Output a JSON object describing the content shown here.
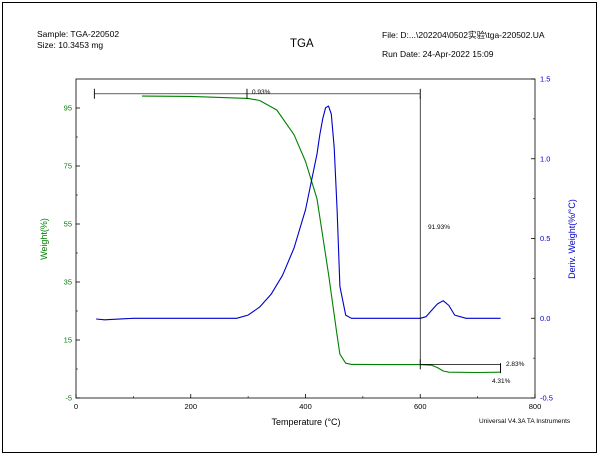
{
  "header": {
    "sample": "Sample: TGA-220502",
    "size": "Size:  10.3453 mg",
    "title": "TGA",
    "file": "File: D:...\\202204\\0502实验\\tga-220502.UA",
    "run_date": "Run Date: 24-Apr-2022 15:09"
  },
  "footer": {
    "software": "Universal V4.3A TA Instruments"
  },
  "colors": {
    "weight": "#008000",
    "deriv": "#0000cc",
    "axis": "#000000"
  },
  "chart_data": {
    "type": "line",
    "title": "TGA",
    "xlabel": "Temperature (°C)",
    "ylabel_left": "Weight(%)",
    "ylabel_right": "Deriv. Weight(%/°C)",
    "xlim": [
      0,
      800
    ],
    "ylim_left": [
      -5,
      105
    ],
    "ylim_right": [
      -0.5,
      1.5
    ],
    "x_ticks": [
      0,
      200,
      400,
      600,
      800
    ],
    "y_ticks_left": [
      -5,
      15,
      35,
      55,
      75,
      95
    ],
    "y_ticks_right": [
      -0.5,
      0.0,
      0.5,
      1.0,
      1.5
    ],
    "grid": false,
    "series": [
      {
        "name": "Weight(%)",
        "axis": "left",
        "x": [
          115,
          200,
          300,
          320,
          350,
          380,
          400,
          420,
          440,
          455,
          460,
          470,
          480,
          500,
          550,
          600,
          620,
          630,
          640,
          650,
          700,
          740
        ],
        "y": [
          99.1,
          99.0,
          98.3,
          97.6,
          94.3,
          85.8,
          76.6,
          63.7,
          37.8,
          16.6,
          10.1,
          7.0,
          6.6,
          6.6,
          6.5,
          6.5,
          6.3,
          5.5,
          4.3,
          3.9,
          3.8,
          3.9
        ]
      },
      {
        "name": "Deriv. Weight(%/°C)",
        "axis": "right",
        "x": [
          35,
          50,
          100,
          200,
          280,
          300,
          320,
          340,
          360,
          380,
          400,
          420,
          425,
          430,
          435,
          440,
          445,
          450,
          455,
          460,
          470,
          480,
          500,
          550,
          600,
          610,
          620,
          630,
          640,
          650,
          660,
          680,
          700,
          740
        ],
        "y": [
          -0.005,
          -0.01,
          0.0,
          0.0,
          0.0,
          0.02,
          0.07,
          0.15,
          0.27,
          0.44,
          0.68,
          1.03,
          1.15,
          1.25,
          1.32,
          1.33,
          1.28,
          1.07,
          0.68,
          0.2,
          0.02,
          0.0,
          0.0,
          0.0,
          0.0,
          0.01,
          0.05,
          0.09,
          0.11,
          0.08,
          0.02,
          0.0,
          0.0,
          0.0
        ]
      }
    ],
    "annotations": [
      {
        "text": "0.93%"
      },
      {
        "text": "91.93%"
      },
      {
        "text": "2.83%"
      },
      {
        "text": "4.31%"
      }
    ]
  }
}
